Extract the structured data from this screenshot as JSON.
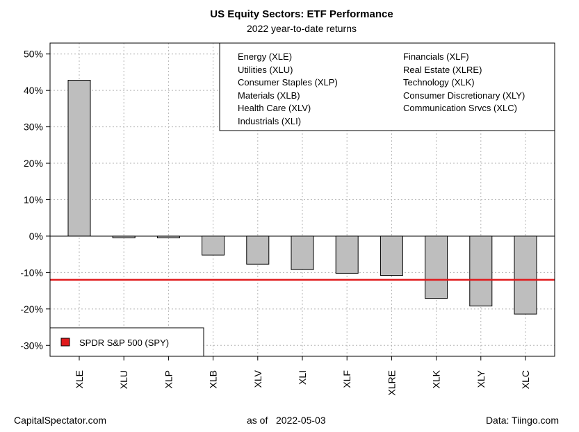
{
  "chart_data": {
    "type": "bar",
    "title": "US Equity Sectors: ETF Performance",
    "subtitle": "2022 year-to-date returns",
    "categories": [
      "XLE",
      "XLU",
      "XLP",
      "XLB",
      "XLV",
      "XLI",
      "XLF",
      "XLRE",
      "XLK",
      "XLY",
      "XLC"
    ],
    "values": [
      42.8,
      -0.5,
      -0.5,
      -5.2,
      -7.7,
      -9.2,
      -10.2,
      -10.8,
      -17.1,
      -19.2,
      -21.4
    ],
    "ylim": [
      -33,
      53
    ],
    "yticks": [
      50,
      40,
      30,
      20,
      10,
      0,
      -10,
      -20,
      -30
    ],
    "ytick_labels": [
      "50%",
      "40%",
      "30%",
      "20%",
      "10%",
      "0%",
      "-10%",
      "-20%",
      "-30%"
    ],
    "xlabel": "",
    "ylabel": "",
    "grid": true,
    "bar_color": "#bebebe",
    "reference_line": {
      "name": "SPDR S&P 500 (SPY)",
      "value": -12,
      "color": "#e0191b"
    },
    "sector_legend": {
      "left": [
        "Energy (XLE)",
        "Utilities (XLU)",
        "Consumer Staples (XLP)",
        "Materials (XLB)",
        "Health Care (XLV)",
        "Industrials (XLI)"
      ],
      "right": [
        "Financials (XLF)",
        "Real Estate (XLRE)",
        "Technology (XLK)",
        "Consumer Discretionary (XLY)",
        "Communication Srvcs (XLC)"
      ],
      "placement": "top-right"
    },
    "spy_legend": {
      "label": "SPDR S&P 500 (SPY)",
      "placement": "bottom-left"
    }
  },
  "footer": {
    "source_left": "CapitalSpectator.com",
    "as_of": "as of   2022-05-03",
    "data_source": "Data: Tiingo.com"
  }
}
